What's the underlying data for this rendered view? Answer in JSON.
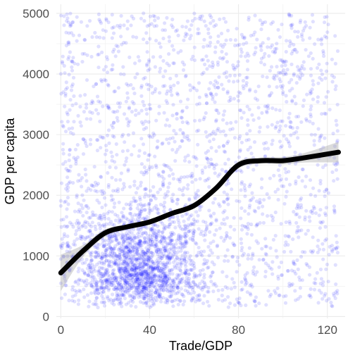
{
  "chart_data": {
    "type": "scatter",
    "title": "",
    "xlabel": "Trade/GDP",
    "ylabel": "GDP per capita",
    "xlim": [
      -2,
      128
    ],
    "ylim": [
      -30,
      5150
    ],
    "x_ticks": [
      0,
      40,
      80,
      120
    ],
    "x_tick_labels": [
      "0",
      "40",
      "80",
      "120"
    ],
    "y_ticks": [
      0,
      1000,
      2000,
      3000,
      4000,
      5000
    ],
    "y_tick_labels": [
      "0",
      "1000",
      "2000",
      "3000",
      "4000",
      "5000"
    ],
    "grid": true,
    "legend": "none",
    "point_color": "#0000ff",
    "point_opacity": 0.12,
    "smooth_color": "#000000",
    "ribbon_color": "#999999",
    "points": {
      "description_count": 3500,
      "x_range": [
        0,
        125
      ],
      "y_range": [
        150,
        5000
      ],
      "dense_region": {
        "x": [
          5,
          65
        ],
        "y": [
          200,
          2000
        ]
      }
    },
    "smooth_line": {
      "x": [
        0,
        10,
        20,
        30,
        40,
        50,
        60,
        70,
        80,
        90,
        100,
        110,
        125
      ],
      "y": [
        720,
        1080,
        1380,
        1480,
        1560,
        1700,
        1830,
        2120,
        2500,
        2570,
        2570,
        2620,
        2710
      ]
    },
    "ribbon_upper": [
      1020,
      1180,
      1440,
      1520,
      1600,
      1740,
      1880,
      2170,
      2560,
      2620,
      2630,
      2700,
      2880
    ],
    "ribbon_lower": [
      420,
      980,
      1320,
      1440,
      1520,
      1660,
      1780,
      2070,
      2440,
      2520,
      2510,
      2540,
      2540
    ]
  }
}
